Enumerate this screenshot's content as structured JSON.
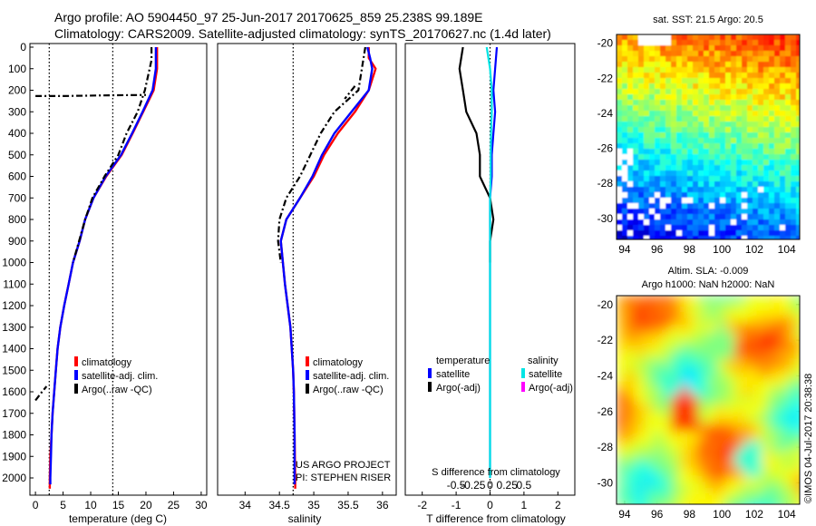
{
  "header": {
    "line1": "Argo profile: AO 5904450_97 25-Jun-2017 20170625_859 25.238S 99.189E",
    "line2": "Climatology: CARS2009. Satellite-adjusted climatology: synTS_20170627.nc (1.4d later)"
  },
  "colors": {
    "climatology": "#ff0000",
    "satellite": "#0000ff",
    "argo": "#000000",
    "salinity_satellite": "#00e5e5",
    "salinity_argo": "#ff00ff"
  },
  "panels": {
    "temperature": {
      "xlabel": "temperature (deg C)",
      "legend": [
        "climatology",
        "satellite-adj. clim.",
        "Argo(..raw -QC)"
      ]
    },
    "salinity": {
      "xlabel": "salinity",
      "legend": [
        "climatology",
        "satellite-adj. clim.",
        "Argo(..raw -QC)"
      ],
      "credit1": "US ARGO PROJECT",
      "credit2": "PI: STEPHEN RISER"
    },
    "difference": {
      "xlabel": "T difference from climatology",
      "top_xlabel": "S difference from climatology",
      "legend_head_temp": "temperature",
      "legend_head_sal": "salinity",
      "legend_temp": [
        "satellite",
        "Argo(-adj)"
      ],
      "legend_sal": [
        "satellite",
        "Argo(-adj)"
      ]
    }
  },
  "maps": {
    "sst_title": "sat. SST: 21.5 Argo: 20.5",
    "sla_title1": "Altim. SLA: -0.009",
    "sla_title2": "Argo h1000: NaN h2000: NaN",
    "side_label": "©IMOS 04-Jul-2017 20:38:38"
  },
  "chart_data": [
    {
      "type": "line",
      "xlabel": "temperature (deg C)",
      "ylabel": "",
      "xlim": [
        -1,
        31
      ],
      "ylim": [
        2080,
        0
      ],
      "x_ticks": [
        0,
        5,
        10,
        15,
        20,
        25,
        30
      ],
      "y_ticks": [
        0,
        100,
        200,
        300,
        400,
        500,
        600,
        700,
        800,
        900,
        1000,
        1100,
        1200,
        1300,
        1400,
        1500,
        1600,
        1700,
        1800,
        1900,
        2000
      ],
      "reference_lines_x": [
        2.5,
        14
      ],
      "series": [
        {
          "name": "climatology",
          "points": [
            [
              22,
              0
            ],
            [
              22,
              50
            ],
            [
              22,
              100
            ],
            [
              21.4,
              200
            ],
            [
              19.5,
              300
            ],
            [
              17.6,
              400
            ],
            [
              15.6,
              500
            ],
            [
              12.8,
              600
            ],
            [
              10.5,
              700
            ],
            [
              9.0,
              800
            ],
            [
              8.0,
              900
            ],
            [
              6.8,
              1000
            ],
            [
              6.0,
              1100
            ],
            [
              5.2,
              1200
            ],
            [
              4.5,
              1300
            ],
            [
              4.0,
              1400
            ],
            [
              3.7,
              1500
            ],
            [
              3.4,
              1600
            ],
            [
              3.1,
              1700
            ],
            [
              2.9,
              1800
            ],
            [
              2.7,
              1900
            ],
            [
              2.6,
              2000
            ],
            [
              2.6,
              2050
            ]
          ]
        },
        {
          "name": "satellite-adj. clim.",
          "points": [
            [
              21.8,
              0
            ],
            [
              21.8,
              50
            ],
            [
              21.8,
              100
            ],
            [
              21.2,
              200
            ],
            [
              19.4,
              300
            ],
            [
              17.5,
              400
            ],
            [
              15.5,
              500
            ],
            [
              12.7,
              600
            ],
            [
              10.5,
              700
            ],
            [
              9.0,
              800
            ],
            [
              8.0,
              900
            ],
            [
              6.8,
              1000
            ],
            [
              6.0,
              1100
            ],
            [
              5.2,
              1200
            ],
            [
              4.5,
              1300
            ],
            [
              4.0,
              1400
            ],
            [
              3.7,
              1500
            ],
            [
              3.4,
              1600
            ],
            [
              3.1,
              1700
            ],
            [
              2.9,
              1800
            ],
            [
              2.8,
              1900
            ],
            [
              2.7,
              2000
            ],
            [
              2.7,
              2030
            ]
          ]
        },
        {
          "name": "Argo(..raw -QC)",
          "points": [
            [
              21,
              0
            ],
            [
              21,
              60
            ],
            [
              20.5,
              120
            ],
            [
              19.8,
              200
            ],
            [
              18.5,
              300
            ],
            [
              16.5,
              400
            ],
            [
              15.0,
              500
            ],
            [
              12.5,
              600
            ],
            [
              10.3,
              700
            ],
            [
              9.0,
              800
            ],
            [
              7.9,
              900
            ],
            [
              6.8,
              1000
            ]
          ]
        },
        {
          "name": "Argo(..raw -QC)",
          "points": [
            [
              0,
              227
            ],
            [
              5,
              227
            ],
            [
              12,
              224
            ],
            [
              20,
              222
            ]
          ]
        },
        {
          "name": "Argo(..raw -QC)",
          "points": [
            [
              0,
              1640
            ],
            [
              1.2,
              1600
            ],
            [
              2,
              1575
            ]
          ]
        }
      ]
    },
    {
      "type": "line",
      "xlabel": "salinity",
      "ylabel": "",
      "xlim": [
        33.6,
        36.2
      ],
      "ylim": [
        2080,
        0
      ],
      "x_ticks": [
        34,
        34.5,
        35,
        35.5,
        36
      ],
      "y_ticks": [],
      "reference_lines_x": [
        34.7
      ],
      "series": [
        {
          "name": "climatology",
          "points": [
            [
              35.8,
              0
            ],
            [
              35.8,
              50
            ],
            [
              35.9,
              100
            ],
            [
              35.8,
              200
            ],
            [
              35.6,
              300
            ],
            [
              35.35,
              400
            ],
            [
              35.15,
              500
            ],
            [
              35.0,
              600
            ],
            [
              34.8,
              700
            ],
            [
              34.6,
              800
            ],
            [
              34.52,
              900
            ],
            [
              34.55,
              1000
            ],
            [
              34.58,
              1100
            ],
            [
              34.62,
              1200
            ],
            [
              34.66,
              1300
            ],
            [
              34.68,
              1400
            ],
            [
              34.7,
              1500
            ],
            [
              34.71,
              1600
            ],
            [
              34.72,
              1800
            ],
            [
              34.73,
              2000
            ],
            [
              34.73,
              2050
            ]
          ]
        },
        {
          "name": "satellite-adj. clim.",
          "points": [
            [
              35.78,
              0
            ],
            [
              35.82,
              50
            ],
            [
              35.85,
              100
            ],
            [
              35.8,
              200
            ],
            [
              35.55,
              300
            ],
            [
              35.3,
              400
            ],
            [
              35.12,
              500
            ],
            [
              34.98,
              600
            ],
            [
              34.8,
              700
            ],
            [
              34.6,
              800
            ],
            [
              34.52,
              900
            ],
            [
              34.55,
              1000
            ],
            [
              34.58,
              1100
            ],
            [
              34.62,
              1200
            ],
            [
              34.66,
              1300
            ],
            [
              34.68,
              1400
            ],
            [
              34.7,
              1500
            ],
            [
              34.71,
              1600
            ],
            [
              34.72,
              1800
            ],
            [
              34.72,
              2000
            ],
            [
              34.72,
              2030
            ]
          ]
        },
        {
          "name": "Argo(..raw -QC)",
          "points": [
            [
              35.75,
              0
            ],
            [
              35.7,
              100
            ],
            [
              35.65,
              200
            ],
            [
              35.3,
              300
            ],
            [
              35.1,
              400
            ],
            [
              34.95,
              500
            ],
            [
              34.8,
              600
            ],
            [
              34.6,
              700
            ],
            [
              34.5,
              800
            ],
            [
              34.48,
              900
            ],
            [
              34.52,
              1000
            ]
          ]
        },
        {
          "name": "Argo(..raw -QC)",
          "points": [
            [
              35.6,
              180
            ],
            [
              35.45,
              240
            ]
          ]
        }
      ]
    },
    {
      "type": "line",
      "xlabel": "T difference from climatology",
      "top_xlabel": "S difference from climatology",
      "ylabel": "",
      "xlim": [
        -2.5,
        2.5
      ],
      "ylim": [
        2080,
        0
      ],
      "x_ticks": [
        -2,
        -1,
        0,
        1,
        2
      ],
      "top_x_ticks": [
        "-0.5",
        "-0.25",
        "0",
        "0.25",
        "0.5"
      ],
      "y_ticks": [],
      "reference_lines_x": [
        0
      ],
      "series": [
        {
          "name": "temperature satellite",
          "points": [
            [
              0.2,
              0
            ],
            [
              0.15,
              100
            ],
            [
              0.1,
              200
            ],
            [
              0.15,
              300
            ],
            [
              0.1,
              400
            ],
            [
              0.05,
              500
            ],
            [
              0.05,
              600
            ],
            [
              0,
              700
            ],
            [
              0,
              800
            ],
            [
              0,
              1000
            ],
            [
              0,
              1500
            ],
            [
              0,
              2000
            ]
          ]
        },
        {
          "name": "temperature Argo(-adj)",
          "points": [
            [
              -0.8,
              0
            ],
            [
              -0.9,
              100
            ],
            [
              -0.8,
              200
            ],
            [
              -0.7,
              300
            ],
            [
              -0.4,
              400
            ],
            [
              -0.3,
              500
            ],
            [
              -0.3,
              600
            ],
            [
              0,
              700
            ],
            [
              0.1,
              800
            ],
            [
              0,
              900
            ],
            [
              0,
              1000
            ]
          ]
        },
        {
          "name": "salinity satellite",
          "points": [
            [
              -0.1,
              0
            ],
            [
              0,
              100
            ],
            [
              0.05,
              200
            ],
            [
              0.05,
              300
            ],
            [
              0.03,
              400
            ],
            [
              0.02,
              500
            ],
            [
              0.02,
              600
            ],
            [
              0,
              700
            ],
            [
              0,
              800
            ],
            [
              0,
              1000
            ],
            [
              0,
              1500
            ],
            [
              0,
              2000
            ]
          ]
        },
        {
          "name": "salinity Argo(-adj)",
          "points": []
        }
      ]
    },
    {
      "type": "heatmap",
      "title": "sat. SST: 21.5 Argo: 20.5",
      "x_ticks": [
        94,
        96,
        98,
        100,
        102,
        104
      ],
      "y_ticks": [
        -20,
        -22,
        -24,
        -26,
        -28,
        -30
      ],
      "xlim": [
        93.5,
        104.8
      ],
      "ylim": [
        -31.2,
        -19.5
      ]
    },
    {
      "type": "heatmap",
      "title": "Altim. SLA: -0.009",
      "subtitle": "Argo h1000: NaN h2000: NaN",
      "x_ticks": [
        94,
        96,
        98,
        100,
        102,
        104
      ],
      "y_ticks": [
        -20,
        -22,
        -24,
        -26,
        -28,
        -30
      ],
      "xlim": [
        93.5,
        104.8
      ],
      "ylim": [
        -31.2,
        -19.5
      ]
    }
  ]
}
